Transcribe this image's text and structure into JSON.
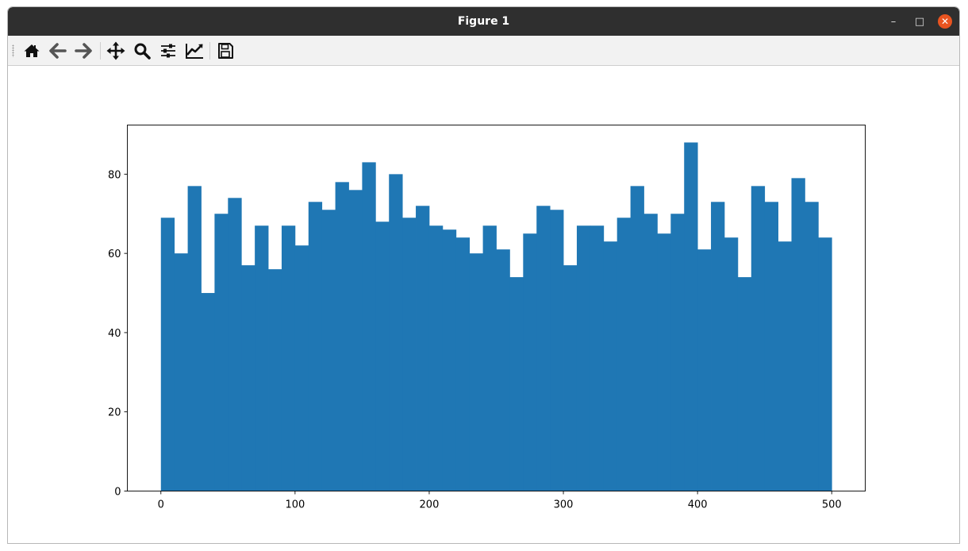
{
  "window": {
    "title": "Figure 1",
    "minimize_glyph": "–",
    "maximize_glyph": "□",
    "close_glyph": "✕"
  },
  "toolbar": {
    "buttons": [
      {
        "icon": "home-icon",
        "label": "Home"
      },
      {
        "icon": "back-arrow-icon",
        "label": "Back"
      },
      {
        "icon": "forward-arrow-icon",
        "label": "Forward"
      },
      {
        "icon": "pan-icon",
        "label": "Pan"
      },
      {
        "icon": "zoom-icon",
        "label": "Zoom"
      },
      {
        "icon": "subplots-icon",
        "label": "Subplots"
      },
      {
        "icon": "customize-icon",
        "label": "Customize"
      },
      {
        "icon": "save-icon",
        "label": "Save"
      }
    ]
  },
  "colors": {
    "bar": "#1f77b4",
    "titlebar": "#2f2f2f",
    "close_button": "#e95420"
  },
  "chart_data": {
    "type": "bar",
    "subtype": "histogram",
    "bin_width": 10,
    "bin_edges_start": 0,
    "bin_edges_end": 500,
    "values": [
      69,
      60,
      77,
      50,
      70,
      74,
      57,
      67,
      56,
      67,
      62,
      73,
      71,
      78,
      76,
      83,
      68,
      80,
      69,
      72,
      67,
      66,
      64,
      60,
      67,
      61,
      54,
      65,
      72,
      71,
      57,
      67,
      67,
      63,
      69,
      77,
      70,
      65,
      70,
      88,
      61,
      73,
      64,
      54,
      77,
      73,
      63,
      79,
      73,
      64
    ],
    "xlim": [
      -25,
      525
    ],
    "ylim": [
      0,
      92.4
    ],
    "xticks": [
      0,
      100,
      200,
      300,
      400,
      500
    ],
    "yticks": [
      0,
      20,
      40,
      60,
      80
    ],
    "grid": false,
    "title": "",
    "xlabel": "",
    "ylabel": ""
  }
}
